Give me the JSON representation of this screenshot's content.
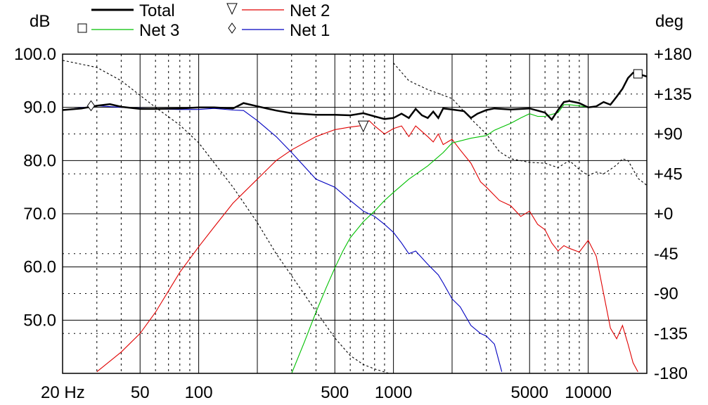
{
  "chart_data": {
    "type": "line",
    "title": "",
    "y_left_unit": "dB",
    "y_right_unit": "deg",
    "x_scale": "log",
    "xlim": [
      20,
      20000
    ],
    "ylim_left": [
      40,
      100
    ],
    "ylim_right": [
      -180,
      180
    ],
    "x_tick_labels": [
      {
        "value": 20,
        "label": "20 Hz"
      },
      {
        "value": 50,
        "label": "50"
      },
      {
        "value": 100,
        "label": "100"
      },
      {
        "value": 500,
        "label": "500"
      },
      {
        "value": 1000,
        "label": "1000"
      },
      {
        "value": 5000,
        "label": "5000"
      },
      {
        "value": 10000,
        "label": "10000"
      }
    ],
    "y_left_tick_labels": [
      {
        "value": 100,
        "label": "100.0"
      },
      {
        "value": 90,
        "label": "90.0"
      },
      {
        "value": 80,
        "label": "80.0"
      },
      {
        "value": 70,
        "label": "70.0"
      },
      {
        "value": 60,
        "label": "60.0"
      },
      {
        "value": 50,
        "label": "50.0"
      }
    ],
    "y_right_tick_labels": [
      {
        "value": 180,
        "label": "+180"
      },
      {
        "value": 135,
        "label": "+135"
      },
      {
        "value": 90,
        "label": "+90"
      },
      {
        "value": 45,
        "label": "+45"
      },
      {
        "value": 0,
        "label": "+0"
      },
      {
        "value": -45,
        "label": "-45"
      },
      {
        "value": -90,
        "label": "-90"
      },
      {
        "value": -135,
        "label": "-135"
      },
      {
        "value": -180,
        "label": "-180"
      }
    ],
    "grid": true,
    "legend_position": "top",
    "series": [
      {
        "name": "Total",
        "color": "#000000",
        "marker": "none",
        "axis": "left",
        "points": [
          [
            20,
            89.5
          ],
          [
            25,
            89.8
          ],
          [
            30,
            90.3
          ],
          [
            35,
            90.6
          ],
          [
            40,
            90.1
          ],
          [
            50,
            89.7
          ],
          [
            60,
            89.7
          ],
          [
            80,
            89.8
          ],
          [
            100,
            90.0
          ],
          [
            120,
            90.0
          ],
          [
            150,
            89.8
          ],
          [
            170,
            90.8
          ],
          [
            200,
            90.2
          ],
          [
            250,
            89.4
          ],
          [
            300,
            88.9
          ],
          [
            400,
            88.6
          ],
          [
            500,
            88.6
          ],
          [
            600,
            88.5
          ],
          [
            700,
            88.9
          ],
          [
            800,
            88.3
          ],
          [
            900,
            87.8
          ],
          [
            1000,
            88.0
          ],
          [
            1100,
            88.8
          ],
          [
            1200,
            88.0
          ],
          [
            1300,
            89.7
          ],
          [
            1400,
            88.5
          ],
          [
            1500,
            88.0
          ],
          [
            1600,
            89.2
          ],
          [
            1700,
            88.0
          ],
          [
            1800,
            89.8
          ],
          [
            2000,
            89.6
          ],
          [
            2300,
            89.3
          ],
          [
            2500,
            88.0
          ],
          [
            2700,
            88.8
          ],
          [
            3000,
            89.5
          ],
          [
            3300,
            89.8
          ],
          [
            4000,
            89.6
          ],
          [
            5000,
            89.8
          ],
          [
            6000,
            89.0
          ],
          [
            6500,
            87.7
          ],
          [
            7000,
            89.5
          ],
          [
            7500,
            91.0
          ],
          [
            8000,
            91.2
          ],
          [
            9000,
            90.8
          ],
          [
            10000,
            90.0
          ],
          [
            11000,
            90.2
          ],
          [
            12000,
            91.0
          ],
          [
            13000,
            90.5
          ],
          [
            14000,
            92.0
          ],
          [
            15000,
            93.5
          ],
          [
            16000,
            95.5
          ],
          [
            17000,
            96.5
          ],
          [
            18000,
            96.3
          ],
          [
            20000,
            95.8
          ]
        ]
      },
      {
        "name": "Net 3",
        "color": "#00c000",
        "marker": "square",
        "marker_at": [
          18000,
          96.3
        ],
        "axis": "left",
        "points": [
          [
            300,
            40.0
          ],
          [
            350,
            46.0
          ],
          [
            400,
            51.5
          ],
          [
            450,
            56.0
          ],
          [
            500,
            59.8
          ],
          [
            550,
            63.0
          ],
          [
            600,
            65.5
          ],
          [
            700,
            68.5
          ],
          [
            800,
            70.5
          ],
          [
            900,
            72.5
          ],
          [
            1000,
            74.0
          ],
          [
            1200,
            76.5
          ],
          [
            1500,
            79.0
          ],
          [
            1800,
            81.5
          ],
          [
            2000,
            83.3
          ],
          [
            2500,
            84.2
          ],
          [
            3000,
            84.7
          ],
          [
            3300,
            85.7
          ],
          [
            3600,
            86.3
          ],
          [
            4000,
            87.0
          ],
          [
            4500,
            88.0
          ],
          [
            5000,
            88.8
          ],
          [
            5500,
            88.3
          ],
          [
            6000,
            88.3
          ],
          [
            7000,
            89.0
          ],
          [
            7500,
            90.5
          ],
          [
            8000,
            90.5
          ],
          [
            9000,
            90.3
          ],
          [
            10000,
            90.0
          ]
        ]
      },
      {
        "name": "Net 2",
        "color": "#e00000",
        "marker": "triangle",
        "marker_at": [
          700,
          86.5
        ],
        "axis": "left",
        "points": [
          [
            30,
            40.3
          ],
          [
            40,
            44.0
          ],
          [
            50,
            47.5
          ],
          [
            60,
            51.5
          ],
          [
            70,
            55.5
          ],
          [
            80,
            59.0
          ],
          [
            100,
            63.8
          ],
          [
            120,
            67.5
          ],
          [
            150,
            72.0
          ],
          [
            200,
            76.5
          ],
          [
            250,
            80.0
          ],
          [
            300,
            82.0
          ],
          [
            400,
            84.5
          ],
          [
            500,
            85.8
          ],
          [
            600,
            86.3
          ],
          [
            700,
            86.6
          ],
          [
            750,
            87.5
          ],
          [
            800,
            86.5
          ],
          [
            900,
            85.0
          ],
          [
            1000,
            86.0
          ],
          [
            1100,
            86.5
          ],
          [
            1200,
            84.5
          ],
          [
            1300,
            86.5
          ],
          [
            1500,
            84.5
          ],
          [
            1600,
            83.5
          ],
          [
            1700,
            85.0
          ],
          [
            1800,
            83.0
          ],
          [
            2000,
            84.0
          ],
          [
            2200,
            82.0
          ],
          [
            2500,
            79.5
          ],
          [
            2800,
            76.0
          ],
          [
            3000,
            75.0
          ],
          [
            3500,
            72.5
          ],
          [
            4000,
            71.5
          ],
          [
            4500,
            69.5
          ],
          [
            5000,
            70.5
          ],
          [
            5500,
            68.0
          ],
          [
            6000,
            67.0
          ],
          [
            6500,
            64.5
          ],
          [
            7000,
            63.0
          ],
          [
            7500,
            64.0
          ],
          [
            8000,
            63.5
          ],
          [
            9000,
            62.8
          ],
          [
            10000,
            65.0
          ],
          [
            11000,
            62.0
          ],
          [
            12000,
            55.0
          ],
          [
            13000,
            48.5
          ],
          [
            14000,
            46.5
          ],
          [
            15000,
            49.0
          ],
          [
            16000,
            45.5
          ],
          [
            17000,
            42.0
          ],
          [
            18000,
            40.3
          ]
        ]
      },
      {
        "name": "Net 1",
        "color": "#0000c0",
        "marker": "diamond",
        "marker_at": [
          28,
          90.3
        ],
        "axis": "left",
        "points": [
          [
            20,
            89.5
          ],
          [
            30,
            90.3
          ],
          [
            40,
            90.0
          ],
          [
            60,
            89.7
          ],
          [
            80,
            89.6
          ],
          [
            100,
            89.6
          ],
          [
            120,
            89.8
          ],
          [
            150,
            89.5
          ],
          [
            170,
            89.4
          ],
          [
            200,
            87.5
          ],
          [
            250,
            84.5
          ],
          [
            300,
            81.5
          ],
          [
            400,
            76.5
          ],
          [
            500,
            75.0
          ],
          [
            600,
            72.5
          ],
          [
            700,
            70.5
          ],
          [
            800,
            69.5
          ],
          [
            900,
            68.0
          ],
          [
            1000,
            66.5
          ],
          [
            1100,
            64.5
          ],
          [
            1200,
            62.5
          ],
          [
            1300,
            63.0
          ],
          [
            1500,
            60.5
          ],
          [
            1700,
            58.5
          ],
          [
            1800,
            57.0
          ],
          [
            2000,
            54.0
          ],
          [
            2200,
            52.5
          ],
          [
            2500,
            49.0
          ],
          [
            2800,
            47.5
          ],
          [
            3000,
            47.0
          ],
          [
            3300,
            45.5
          ],
          [
            3600,
            40.3
          ]
        ]
      },
      {
        "name": "",
        "color": "#000000",
        "dashed": true,
        "marker": "none",
        "axis": "right",
        "points": [
          [
            20,
            173
          ],
          [
            30,
            165
          ],
          [
            40,
            150
          ],
          [
            60,
            120
          ],
          [
            80,
            100
          ],
          [
            100,
            80
          ],
          [
            150,
            30
          ],
          [
            200,
            -10
          ],
          [
            250,
            -45
          ],
          [
            300,
            -70
          ],
          [
            400,
            -110
          ],
          [
            500,
            -140
          ],
          [
            600,
            -160
          ],
          [
            700,
            -170
          ],
          [
            800,
            -175
          ],
          [
            950,
            -180
          ],
          [
            1000,
            170
          ],
          [
            1200,
            150
          ],
          [
            1500,
            140
          ],
          [
            2000,
            130
          ],
          [
            2500,
            107
          ],
          [
            3000,
            90
          ],
          [
            3500,
            70
          ],
          [
            4000,
            62
          ],
          [
            5000,
            58
          ],
          [
            6000,
            57
          ],
          [
            7000,
            52
          ],
          [
            8000,
            60
          ],
          [
            9000,
            50
          ],
          [
            10000,
            43
          ],
          [
            11000,
            47
          ],
          [
            12000,
            45
          ],
          [
            13000,
            50
          ],
          [
            14000,
            55
          ],
          [
            15000,
            62
          ],
          [
            16000,
            60
          ],
          [
            17000,
            50
          ],
          [
            18000,
            40
          ],
          [
            20000,
            32
          ]
        ]
      }
    ]
  }
}
